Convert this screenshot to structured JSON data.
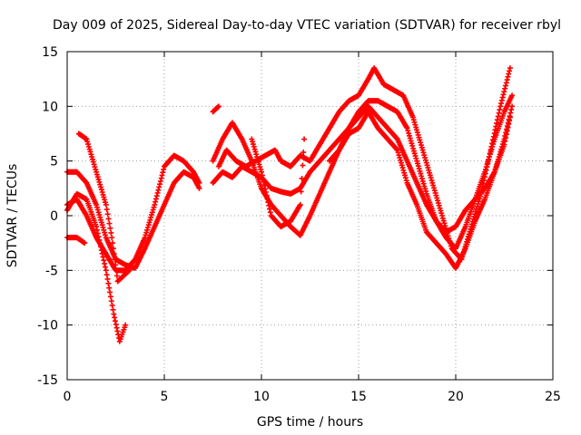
{
  "chart_data": {
    "type": "scatter",
    "title": "Day 009 of 2025, Sidereal Day-to-day VTEC variation (SDTVAR) for receiver rbyl",
    "xlabel": "GPS time / hours",
    "ylabel": "SDTVAR / TECUs",
    "xlim": [
      0,
      25
    ],
    "ylim": [
      -15,
      15
    ],
    "x_ticks": [
      0,
      5,
      10,
      15,
      20,
      25
    ],
    "y_ticks": [
      -15,
      -10,
      -5,
      0,
      5,
      10,
      15
    ],
    "x_tick_labels": [
      "0",
      "5",
      "10",
      "15",
      "20",
      "25"
    ],
    "y_tick_labels": [
      "-15",
      "-10",
      "-5",
      "0",
      "5",
      "10",
      "15"
    ],
    "grid": true,
    "marker": "+",
    "color": "#ff0000",
    "series": [
      {
        "points": [
          [
            0,
            4
          ],
          [
            0.5,
            4
          ],
          [
            1,
            3
          ],
          [
            1.5,
            1
          ],
          [
            2,
            -2
          ],
          [
            2.5,
            -4
          ],
          [
            3,
            -4.5
          ],
          [
            3.5,
            -4.8
          ],
          [
            4,
            -3
          ],
          [
            4.5,
            -1
          ],
          [
            5,
            1
          ],
          [
            5.5,
            3
          ],
          [
            6,
            4
          ],
          [
            6.5,
            3.5
          ],
          [
            6.8,
            2.5
          ]
        ]
      },
      {
        "points": [
          [
            0,
            1
          ],
          [
            0.5,
            1.5
          ],
          [
            1,
            0
          ],
          [
            1.5,
            -2
          ],
          [
            2,
            -3.5
          ],
          [
            2.5,
            -5
          ],
          [
            3,
            -5
          ],
          [
            3.5,
            -4
          ],
          [
            4,
            -2
          ],
          [
            4.5,
            1
          ],
          [
            5,
            4.5
          ],
          [
            5.5,
            5.5
          ],
          [
            6,
            5
          ],
          [
            6.5,
            4
          ],
          [
            6.8,
            3
          ]
        ]
      },
      {
        "points": [
          [
            0,
            -2
          ],
          [
            0.5,
            -2
          ],
          [
            0.9,
            -2.5
          ]
        ]
      },
      {
        "points": [
          [
            0.6,
            7.5
          ],
          [
            1,
            7
          ],
          [
            1.5,
            4
          ],
          [
            2,
            1
          ],
          [
            2.3,
            -2
          ],
          [
            2.6,
            -6
          ],
          [
            2.9,
            -5.5
          ],
          [
            3.2,
            -5
          ]
        ]
      },
      {
        "points": [
          [
            0,
            0.5
          ],
          [
            0.5,
            2
          ],
          [
            1,
            1.5
          ],
          [
            1.5,
            -1
          ],
          [
            2,
            -5
          ],
          [
            2.4,
            -9
          ],
          [
            2.7,
            -11.5
          ],
          [
            3,
            -10
          ]
        ]
      },
      {
        "points": [
          [
            7.5,
            9.5
          ],
          [
            7.8,
            10
          ]
        ]
      },
      {
        "points": [
          [
            7.5,
            3
          ],
          [
            8,
            4
          ],
          [
            8.5,
            3.5
          ],
          [
            9,
            4.5
          ],
          [
            9.5,
            4
          ],
          [
            10,
            3.5
          ],
          [
            10.5,
            2.5
          ],
          [
            11,
            2.2
          ],
          [
            11.5,
            2
          ],
          [
            12,
            2.5
          ],
          [
            12.5,
            4
          ],
          [
            13,
            5
          ],
          [
            13.5,
            6
          ],
          [
            14,
            7
          ],
          [
            14.5,
            8
          ],
          [
            15,
            9
          ],
          [
            15.5,
            10
          ],
          [
            16,
            9
          ],
          [
            16.5,
            8
          ],
          [
            17,
            7
          ],
          [
            17.5,
            5
          ],
          [
            18,
            3
          ],
          [
            18.5,
            1
          ],
          [
            19,
            -0.5
          ],
          [
            19.5,
            -1.5
          ],
          [
            20,
            -1
          ],
          [
            20.5,
            0.5
          ],
          [
            21,
            1.5
          ],
          [
            21.5,
            2.5
          ],
          [
            22,
            4
          ],
          [
            22.5,
            6.5
          ],
          [
            22.8,
            9
          ]
        ]
      },
      {
        "points": [
          [
            7.5,
            5
          ],
          [
            8,
            7
          ],
          [
            8.5,
            8.5
          ],
          [
            9,
            7
          ],
          [
            9.5,
            5
          ],
          [
            10,
            2.5
          ],
          [
            10.5,
            1
          ],
          [
            11,
            0
          ],
          [
            11.5,
            -1
          ],
          [
            12,
            -1.8
          ],
          [
            12.5,
            0
          ],
          [
            13,
            2
          ],
          [
            13.5,
            4
          ],
          [
            14,
            6
          ],
          [
            14.5,
            7.5
          ],
          [
            15,
            8
          ],
          [
            15.5,
            9.5
          ],
          [
            16,
            8
          ],
          [
            16.5,
            7
          ],
          [
            17,
            6
          ],
          [
            17.5,
            3
          ],
          [
            18,
            1
          ],
          [
            18.5,
            -1.5
          ],
          [
            19,
            -2.5
          ],
          [
            19.5,
            -3.5
          ],
          [
            20,
            -4.8
          ],
          [
            20.5,
            -3
          ],
          [
            21,
            -0.5
          ],
          [
            21.5,
            1.5
          ],
          [
            22,
            4
          ],
          [
            22.5,
            7
          ],
          [
            22.9,
            10
          ]
        ]
      },
      {
        "points": [
          [
            7.8,
            4.5
          ],
          [
            8.2,
            6
          ],
          [
            8.7,
            5
          ],
          [
            9.2,
            4.5
          ],
          [
            9.7,
            5
          ],
          [
            10.2,
            5.5
          ],
          [
            10.7,
            6
          ],
          [
            11,
            5
          ],
          [
            11.5,
            4.5
          ],
          [
            12,
            5.5
          ],
          [
            12.5,
            5
          ],
          [
            13,
            6.5
          ],
          [
            13.5,
            8
          ],
          [
            14,
            9.5
          ],
          [
            14.5,
            10.5
          ],
          [
            15,
            11
          ],
          [
            15.5,
            12.5
          ],
          [
            15.8,
            13.5
          ],
          [
            16.3,
            12
          ],
          [
            16.8,
            11.5
          ],
          [
            17.3,
            11
          ],
          [
            17.8,
            9
          ],
          [
            18.3,
            6
          ],
          [
            18.8,
            3
          ],
          [
            19.3,
            0
          ],
          [
            19.8,
            -3
          ],
          [
            20.3,
            -4
          ],
          [
            20.8,
            -1
          ],
          [
            21.3,
            2
          ],
          [
            21.8,
            6
          ],
          [
            22.3,
            10
          ],
          [
            22.8,
            13.5
          ]
        ]
      },
      {
        "points": [
          [
            9.5,
            7
          ],
          [
            10,
            4
          ],
          [
            10.5,
            0
          ],
          [
            11,
            -1
          ],
          [
            11.5,
            -0.5
          ],
          [
            12,
            1
          ],
          [
            12.2,
            7
          ]
        ]
      },
      {
        "points": [
          [
            13.5,
            5
          ],
          [
            14,
            6
          ],
          [
            14.5,
            8
          ],
          [
            15,
            9.5
          ],
          [
            15.5,
            10.5
          ],
          [
            16,
            10.5
          ],
          [
            16.5,
            10
          ],
          [
            17,
            9.5
          ],
          [
            17.5,
            8
          ],
          [
            18,
            5
          ],
          [
            18.5,
            2
          ],
          [
            19,
            -0.5
          ],
          [
            19.5,
            -2
          ],
          [
            20,
            -3
          ],
          [
            20.5,
            -1
          ],
          [
            21,
            1.5
          ],
          [
            21.5,
            4
          ],
          [
            22,
            7
          ],
          [
            22.5,
            9.5
          ],
          [
            22.9,
            11
          ]
        ]
      }
    ]
  }
}
